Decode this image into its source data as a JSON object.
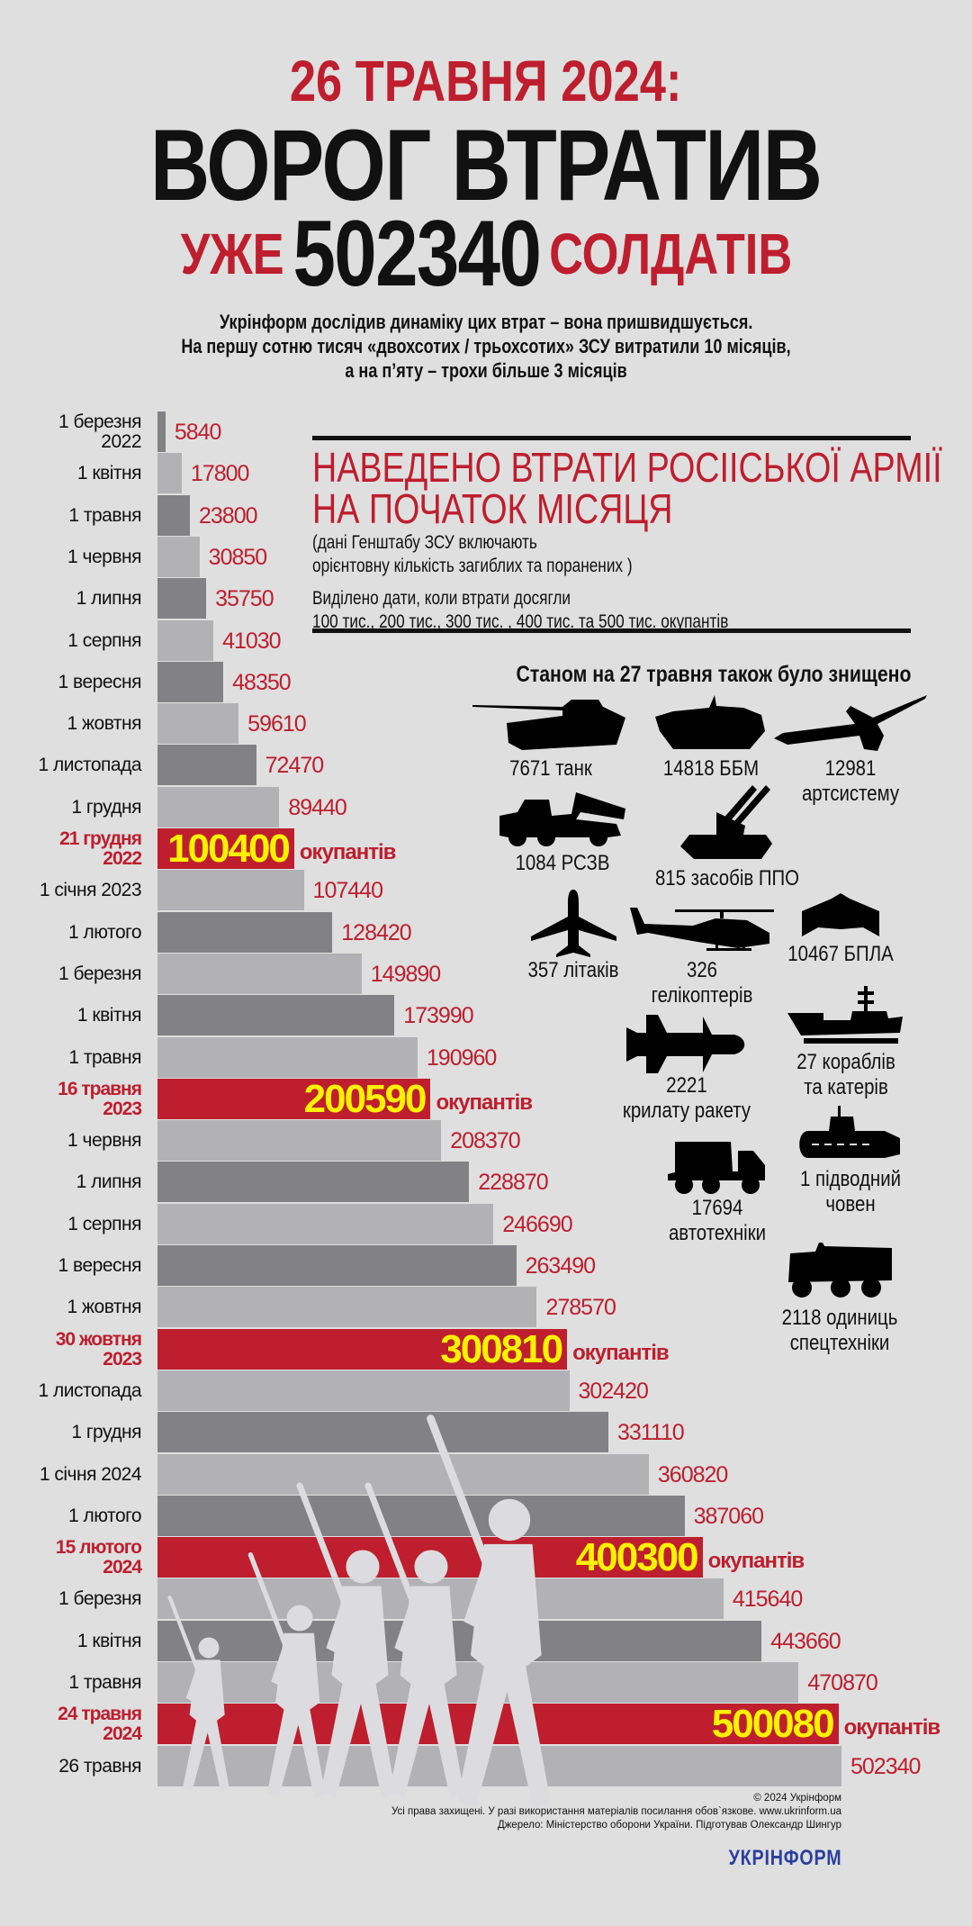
{
  "header": {
    "date_line": "26 ТРАВНЯ 2024:",
    "headline": "ВОРОГ ВТРАТИВ",
    "prefix": "УЖЕ",
    "total": "502340",
    "suffix": "СОЛДАТІВ",
    "subtitle": [
      "Укрінформ дослідив динаміку цих втрат – вона пришвидшується.",
      "На першу сотню тисяч «двохсотих / трьохсотих» ЗСУ витратили 10 місяців,",
      "а на п’яту – трохи більше 3 місяців"
    ]
  },
  "note": {
    "heading": [
      "НАВЕДЕНО ВТРАТИ РОСІІСЬКОЇ АРМІЇ",
      "НА ПОЧАТОК МІСЯЦЯ"
    ],
    "lines": [
      "(дані Генштабу ЗСУ включають",
      "орієнтовну кількість загиблих та поранених )",
      "Виділено дати,  коли втрати досягли",
      "100 тис., 200 тис., 300 тис. , 400 тис. та 500 тис. окупантів"
    ]
  },
  "destroyed": {
    "title": "Станом на 27 травня  також було знищено",
    "items": [
      {
        "icon": "tank-icon",
        "label": "7671 танк"
      },
      {
        "icon": "armored-vehicle-icon",
        "label": "14818 ББМ"
      },
      {
        "icon": "artillery-icon",
        "label": "12981\nартсистему"
      },
      {
        "icon": "rocket-launcher-truck-icon",
        "label": "1084 РСЗВ"
      },
      {
        "icon": "air-defense-icon",
        "label": "815 засобів ППО"
      },
      {
        "icon": "airplane-icon",
        "label": "357 літаків"
      },
      {
        "icon": "helicopter-icon",
        "label": "326\nгелікоптерів"
      },
      {
        "icon": "drone-icon",
        "label": "10467 БПЛА"
      },
      {
        "icon": "ship-icon",
        "label": "27 кораблів\nта катерів"
      },
      {
        "icon": "cruise-missile-icon",
        "label": "2221\nкрилату ракету"
      },
      {
        "icon": "submarine-icon",
        "label": "1 підводний\nчовен"
      },
      {
        "icon": "tanker-truck-icon",
        "label": "17694\nавтотехніки"
      },
      {
        "icon": "special-truck-icon",
        "label": "2118 одиниць\nспецтехніки"
      }
    ]
  },
  "chart_data": {
    "type": "bar",
    "orientation": "horizontal",
    "highlight_suffix": "окупантів",
    "colors": {
      "bar_dark": "#828286",
      "bar_light": "#b2b2b6",
      "highlight": "#be1e2d",
      "highlight_value": "#fff200",
      "value_text": "#be1e2d"
    },
    "rows": [
      {
        "label": "1 березня\n2022",
        "value": 5840
      },
      {
        "label": "1 квітня",
        "value": 17800
      },
      {
        "label": "1 травня",
        "value": 23800
      },
      {
        "label": "1 червня",
        "value": 30850
      },
      {
        "label": "1 липня",
        "value": 35750
      },
      {
        "label": "1 серпня",
        "value": 41030
      },
      {
        "label": "1 вересня",
        "value": 48350
      },
      {
        "label": "1 жовтня",
        "value": 59610
      },
      {
        "label": "1 листопада",
        "value": 72470
      },
      {
        "label": "1 грудня",
        "value": 89440
      },
      {
        "label": "21 грудня\n2022",
        "value": 100400,
        "highlight": true
      },
      {
        "label": "1 січня 2023",
        "value": 107440
      },
      {
        "label": "1 лютого",
        "value": 128420
      },
      {
        "label": "1 березня",
        "value": 149890
      },
      {
        "label": "1 квітня",
        "value": 173990
      },
      {
        "label": "1 травня",
        "value": 190960
      },
      {
        "label": "16 травня\n2023",
        "value": 200590,
        "highlight": true
      },
      {
        "label": "1 червня",
        "value": 208370
      },
      {
        "label": "1 липня",
        "value": 228870
      },
      {
        "label": "1 серпня",
        "value": 246690
      },
      {
        "label": "1 вересня",
        "value": 263490
      },
      {
        "label": "1 жовтня",
        "value": 278570
      },
      {
        "label": "30 жовтня\n2023",
        "value": 300810,
        "highlight": true
      },
      {
        "label": "1 листопада",
        "value": 302420
      },
      {
        "label": "1 грудня",
        "value": 331110
      },
      {
        "label": "1 січня 2024",
        "value": 360820
      },
      {
        "label": "1 лютого",
        "value": 387060
      },
      {
        "label": "15 лютого\n2024",
        "value": 400300,
        "highlight": true
      },
      {
        "label": "1 березня",
        "value": 415640
      },
      {
        "label": "1 квітня",
        "value": 443660
      },
      {
        "label": "1 травня",
        "value": 470870
      },
      {
        "label": "24 травня\n2024",
        "value": 500080,
        "highlight": true
      },
      {
        "label": "26 травня",
        "value": 502340
      }
    ]
  },
  "footer": {
    "copyright": "© 2024 Укрінформ",
    "rights": "Усі права захищені. У разі використання матеріалів посилання обов`язкове. www.ukrinform.ua",
    "source": "Джерело: Міністерство оборони України. Підготував Олександр Шингур",
    "logo": "УКРІНФОРМ",
    "logo_color": "#2b3f9e"
  }
}
